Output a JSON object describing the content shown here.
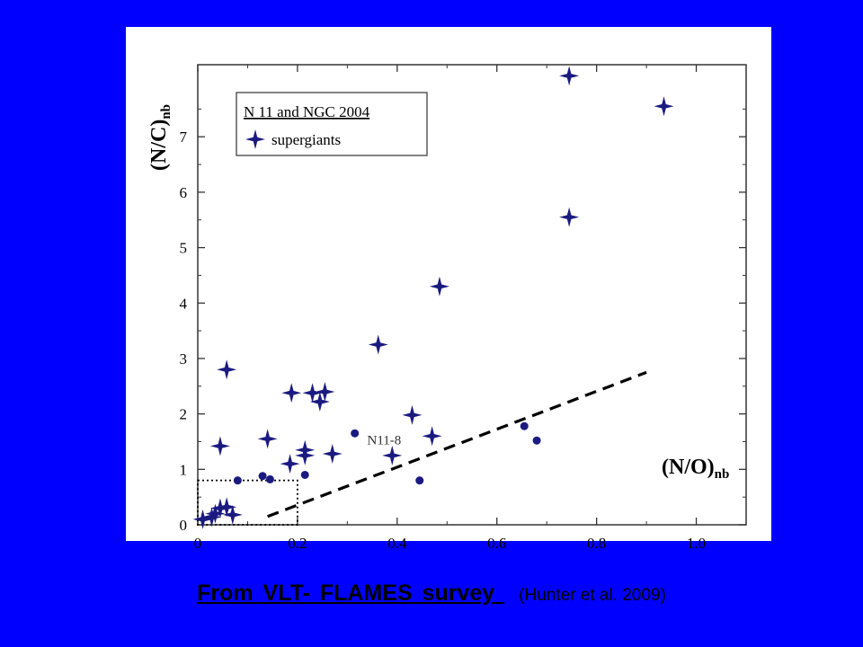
{
  "caption": {
    "main": "From  VLT- FLAMES  survey ",
    "citation": "(Hunter  et al.  2009)"
  },
  "colors": {
    "background": "#0000ff",
    "panel": "#ffffff",
    "marker": "#1a1a80",
    "caption_text": "#000000"
  },
  "chart_data": {
    "type": "scatter",
    "title": "",
    "xlabel_main": "(N/O)",
    "xlabel_sub": "nb",
    "ylabel_main": "(N/C)",
    "ylabel_sub": "nb",
    "xlim": [
      0,
      1.1
    ],
    "ylim": [
      0,
      8.3
    ],
    "x_ticks": [
      0,
      0.2,
      0.4,
      0.6,
      0.8,
      1.0
    ],
    "x_tick_labels": [
      "0",
      "0.2",
      "0.4",
      "0.6",
      "0.8",
      "1.0"
    ],
    "y_ticks": [
      0,
      1,
      2,
      3,
      4,
      5,
      6,
      7
    ],
    "y_tick_labels": [
      "0",
      "1",
      "2",
      "3",
      "4",
      "5",
      "6",
      "7"
    ],
    "grid": false,
    "legend": {
      "title": "N 11 and NGC 2004",
      "entry": "supergiants",
      "placement": "top-left"
    },
    "series": [
      {
        "name": "supergiants",
        "marker": "star",
        "x": [
          0.745,
          0.935,
          0.745,
          0.485,
          0.362,
          0.058,
          0.188,
          0.23,
          0.255,
          0.245,
          0.43,
          0.47,
          0.14,
          0.045,
          0.215,
          0.215,
          0.27,
          0.185,
          0.39,
          0.01,
          0.028,
          0.045,
          0.058,
          0.07,
          0.035
        ],
        "y": [
          8.1,
          7.55,
          5.55,
          4.3,
          3.25,
          2.8,
          2.38,
          2.38,
          2.4,
          2.22,
          1.98,
          1.6,
          1.55,
          1.42,
          1.35,
          1.25,
          1.28,
          1.1,
          1.25,
          0.1,
          0.14,
          0.3,
          0.32,
          0.18,
          0.2
        ]
      },
      {
        "name": "",
        "marker": "circle",
        "x": [
          0.315,
          0.655,
          0.68,
          0.08,
          0.13,
          0.145,
          0.215,
          0.445
        ],
        "y": [
          1.65,
          1.78,
          1.52,
          0.8,
          0.88,
          0.82,
          0.9,
          0.8
        ]
      }
    ],
    "dashed_line": {
      "x": [
        0.14,
        0.9
      ],
      "y": [
        0.15,
        2.75
      ]
    },
    "dotted_box": {
      "x": [
        0,
        0.2
      ],
      "y": [
        0,
        0.8
      ]
    },
    "annotation": {
      "text": "N11-8",
      "x": 0.34,
      "y": 1.45
    }
  }
}
